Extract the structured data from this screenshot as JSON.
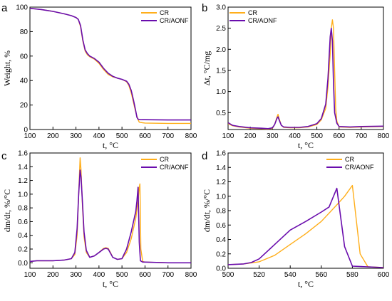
{
  "colors": {
    "CR": "#FFAE1A",
    "CR/AONF": "#6A0DAD"
  },
  "chart_data": [
    {
      "panel": "a",
      "type": "line",
      "xlabel": "t, °C",
      "ylabel": "Weight, %",
      "xlim": [
        100,
        800
      ],
      "ylim": [
        0,
        100
      ],
      "xticks": [
        100,
        200,
        300,
        400,
        500,
        600,
        700,
        800
      ],
      "yticks": [
        0,
        20,
        40,
        60,
        80,
        100
      ],
      "legend": "top-right",
      "series": [
        {
          "name": "CR",
          "x": [
            100,
            150,
            200,
            250,
            280,
            300,
            310,
            320,
            330,
            340,
            350,
            360,
            380,
            400,
            420,
            440,
            460,
            480,
            500,
            520,
            530,
            540,
            550,
            560,
            570,
            575,
            580,
            590,
            600,
            700,
            800
          ],
          "y": [
            99,
            98,
            96.5,
            94.5,
            93,
            91.5,
            90,
            84,
            72,
            64,
            61,
            59.5,
            57.5,
            54,
            49,
            45,
            43,
            42,
            41,
            39,
            36,
            30,
            22,
            14,
            8,
            6,
            5.8,
            5.5,
            5.3,
            5,
            5
          ]
        },
        {
          "name": "CR/AONF",
          "x": [
            100,
            150,
            200,
            250,
            280,
            300,
            310,
            320,
            330,
            340,
            350,
            360,
            380,
            400,
            420,
            440,
            460,
            480,
            500,
            520,
            530,
            540,
            550,
            560,
            565,
            570,
            575,
            580,
            590,
            600,
            700,
            800
          ],
          "y": [
            99,
            98,
            96.5,
            94.5,
            93,
            91.5,
            90,
            85,
            73,
            65,
            62,
            60,
            58,
            55,
            50,
            46,
            43.5,
            42,
            41,
            39.5,
            37,
            32,
            24,
            15,
            10,
            8.5,
            8.2,
            8.1,
            8,
            8,
            7.8,
            7.8
          ]
        }
      ]
    },
    {
      "panel": "b",
      "type": "line",
      "xlabel": "t, °C",
      "ylabel": "Δt, °C/mg",
      "xlim": [
        100,
        800
      ],
      "ylim": [
        0.1,
        3.0
      ],
      "xticks": [
        100,
        200,
        300,
        400,
        500,
        600,
        700,
        800
      ],
      "yticks": [
        0.5,
        1.0,
        1.5,
        2.0,
        2.5,
        3.0
      ],
      "legend": "top-right",
      "series": [
        {
          "name": "CR",
          "x": [
            100,
            120,
            150,
            200,
            250,
            280,
            300,
            310,
            320,
            325,
            330,
            340,
            350,
            380,
            420,
            460,
            500,
            520,
            540,
            550,
            560,
            565,
            570,
            575,
            580,
            585,
            590,
            600,
            650,
            700,
            800
          ],
          "y": [
            0.24,
            0.19,
            0.16,
            0.13,
            0.12,
            0.11,
            0.13,
            0.22,
            0.39,
            0.46,
            0.36,
            0.2,
            0.15,
            0.14,
            0.14,
            0.16,
            0.22,
            0.33,
            0.6,
            1.1,
            1.9,
            2.5,
            2.7,
            2.5,
            1.5,
            0.6,
            0.3,
            0.16,
            0.15,
            0.16,
            0.17
          ]
        },
        {
          "name": "CR/AONF",
          "x": [
            100,
            120,
            150,
            200,
            250,
            280,
            300,
            310,
            320,
            325,
            330,
            340,
            350,
            380,
            420,
            460,
            500,
            520,
            540,
            550,
            555,
            560,
            565,
            570,
            575,
            580,
            590,
            600,
            650,
            700,
            800
          ],
          "y": [
            0.26,
            0.2,
            0.17,
            0.14,
            0.13,
            0.12,
            0.14,
            0.22,
            0.36,
            0.4,
            0.33,
            0.2,
            0.16,
            0.15,
            0.15,
            0.17,
            0.24,
            0.36,
            0.7,
            1.3,
            1.8,
            2.3,
            2.5,
            2.2,
            1.2,
            0.5,
            0.25,
            0.17,
            0.16,
            0.17,
            0.18
          ]
        }
      ]
    },
    {
      "panel": "c",
      "type": "line",
      "xlabel": "t, °C",
      "ylabel": "dm/dt, %/°C",
      "xlim": [
        100,
        800
      ],
      "ylim": [
        -0.08,
        1.6
      ],
      "xticks": [
        100,
        200,
        300,
        400,
        500,
        600,
        700,
        800
      ],
      "yticks": [
        0.0,
        0.2,
        0.4,
        0.6,
        0.8,
        1.0,
        1.2,
        1.4,
        1.6
      ],
      "legend": "top-right",
      "series": [
        {
          "name": "CR",
          "x": [
            100,
            130,
            200,
            250,
            280,
            295,
            305,
            312,
            318,
            322,
            328,
            335,
            345,
            360,
            380,
            400,
            420,
            430,
            440,
            450,
            460,
            480,
            500,
            520,
            540,
            560,
            570,
            575,
            578,
            580,
            582,
            590,
            600,
            700,
            800
          ],
          "y": [
            0.02,
            0.03,
            0.03,
            0.04,
            0.06,
            0.12,
            0.4,
            1.0,
            1.53,
            1.35,
            0.85,
            0.38,
            0.15,
            0.08,
            0.1,
            0.15,
            0.21,
            0.22,
            0.21,
            0.15,
            0.08,
            0.05,
            0.06,
            0.15,
            0.35,
            0.65,
            0.9,
            1.1,
            1.15,
            0.7,
            0.2,
            0.02,
            0.01,
            0.0,
            0.0
          ]
        },
        {
          "name": "CR/AONF",
          "x": [
            100,
            130,
            200,
            250,
            280,
            295,
            305,
            312,
            318,
            322,
            328,
            335,
            345,
            360,
            380,
            400,
            420,
            430,
            440,
            450,
            460,
            480,
            500,
            520,
            540,
            560,
            565,
            570,
            575,
            580,
            590,
            600,
            700,
            800
          ],
          "y": [
            0.02,
            0.03,
            0.03,
            0.04,
            0.06,
            0.15,
            0.5,
            1.0,
            1.35,
            1.25,
            0.9,
            0.45,
            0.18,
            0.08,
            0.1,
            0.15,
            0.2,
            0.21,
            0.2,
            0.14,
            0.08,
            0.05,
            0.06,
            0.2,
            0.45,
            0.75,
            0.9,
            1.1,
            0.3,
            0.03,
            0.01,
            0.01,
            0.0,
            0.0
          ]
        }
      ]
    },
    {
      "panel": "d",
      "type": "line",
      "xlabel": "t, °C",
      "ylabel": "dm/dt, %/°C",
      "xlim": [
        500,
        600
      ],
      "ylim": [
        0.0,
        1.6
      ],
      "xticks": [
        500,
        520,
        540,
        560,
        580,
        600
      ],
      "yticks": [
        0.0,
        0.2,
        0.4,
        0.6,
        0.8,
        1.0,
        1.2,
        1.4,
        1.6
      ],
      "legend": "top-right",
      "series": [
        {
          "name": "CR",
          "x": [
            500,
            510,
            520,
            530,
            540,
            550,
            560,
            570,
            575,
            580,
            585,
            590,
            600
          ],
          "y": [
            0.05,
            0.06,
            0.09,
            0.18,
            0.33,
            0.48,
            0.65,
            0.88,
            1.0,
            1.15,
            0.2,
            0.02,
            0.01
          ]
        },
        {
          "name": "CR/AONF",
          "x": [
            500,
            510,
            515,
            520,
            530,
            540,
            550,
            560,
            565,
            570,
            575,
            580,
            590,
            600
          ],
          "y": [
            0.05,
            0.06,
            0.08,
            0.13,
            0.33,
            0.53,
            0.65,
            0.78,
            0.85,
            1.11,
            0.3,
            0.03,
            0.02,
            0.01
          ]
        }
      ]
    }
  ]
}
